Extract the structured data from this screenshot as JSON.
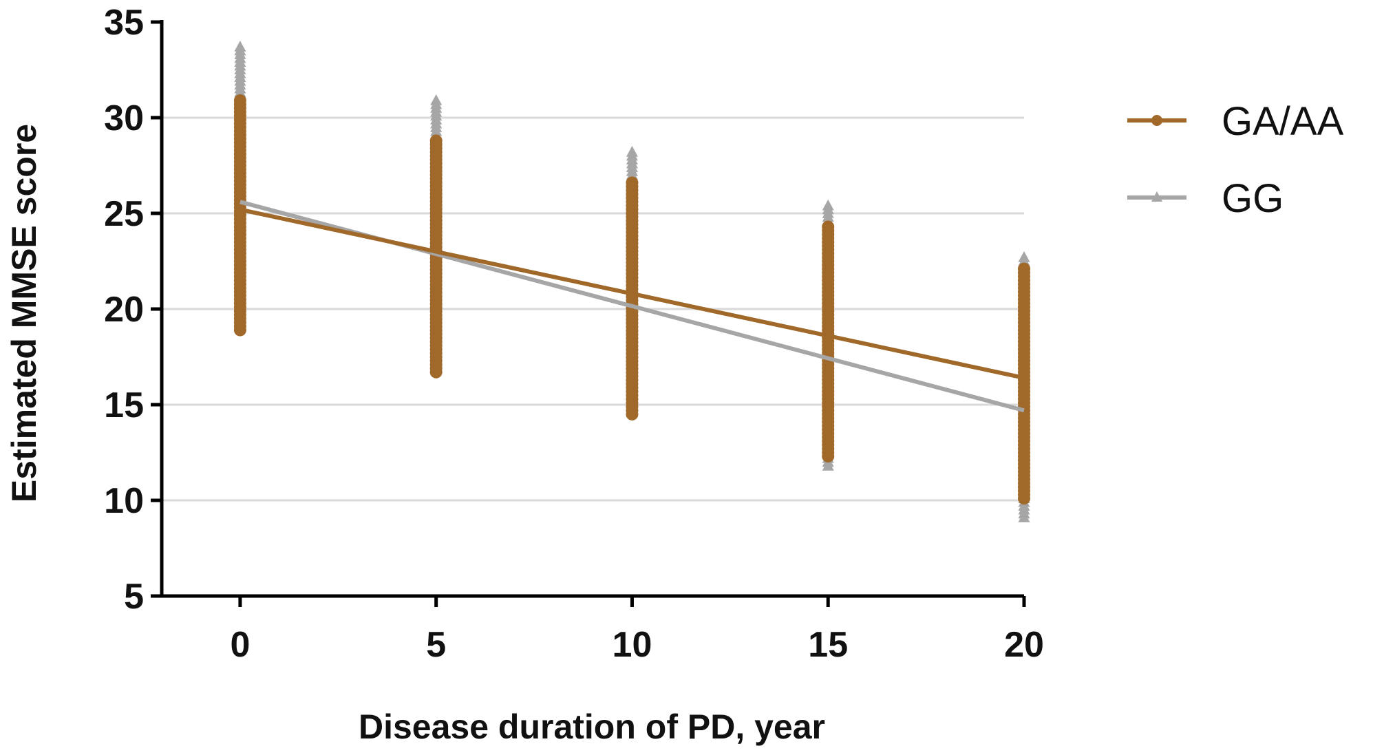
{
  "chart_data": {
    "type": "scatter",
    "title": "",
    "xlabel": "Disease duration of PD, year",
    "ylabel": "Estimated MMSE score",
    "xlim": [
      -2,
      20
    ],
    "ylim": [
      5,
      35
    ],
    "xticks": [
      0,
      5,
      10,
      15,
      20
    ],
    "yticks": [
      5,
      10,
      15,
      20,
      25,
      30,
      35
    ],
    "grid": "horizontal",
    "legend_position": "top-right",
    "series": [
      {
        "name": "GA/AA",
        "color": "#a0692a",
        "marker": "circle",
        "fit_line": {
          "x": [
            0,
            20
          ],
          "y": [
            25.2,
            16.4
          ]
        },
        "points": [
          {
            "x": 0,
            "ymin": 18.9,
            "ymax": 30.9
          },
          {
            "x": 5,
            "ymin": 16.7,
            "ymax": 28.8
          },
          {
            "x": 10,
            "ymin": 14.5,
            "ymax": 26.6
          },
          {
            "x": 15,
            "ymin": 12.3,
            "ymax": 24.3
          },
          {
            "x": 20,
            "ymin": 10.1,
            "ymax": 22.1
          }
        ]
      },
      {
        "name": "GG",
        "color": "#a6a6a6",
        "marker": "triangle",
        "fit_line": {
          "x": [
            0,
            20
          ],
          "y": [
            25.6,
            14.7
          ]
        },
        "points": [
          {
            "x": 0,
            "ymin": 19.2,
            "ymax": 33.7
          },
          {
            "x": 5,
            "ymin": 17.0,
            "ymax": 30.9
          },
          {
            "x": 10,
            "ymin": 14.6,
            "ymax": 28.2
          },
          {
            "x": 15,
            "ymin": 11.8,
            "ymax": 25.4
          },
          {
            "x": 20,
            "ymin": 9.1,
            "ymax": 22.7
          }
        ]
      }
    ]
  }
}
